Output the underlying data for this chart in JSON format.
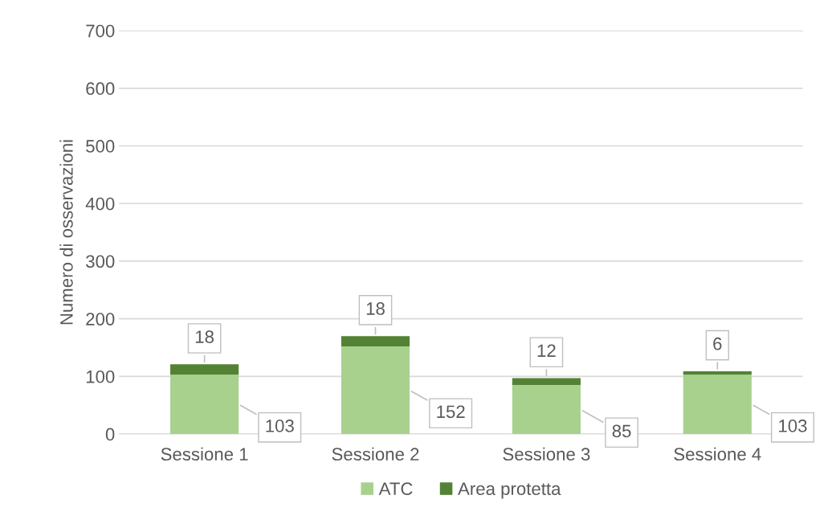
{
  "chart_data": {
    "type": "bar",
    "stacked": true,
    "ylabel": "Numero di osservazioni",
    "categories": [
      "Sessione 1",
      "Sessione 2",
      "Sessione 3",
      "Sessione 4"
    ],
    "series": [
      {
        "name": "ATC",
        "color": "#a9d18e",
        "values": [
          103,
          152,
          85,
          103
        ]
      },
      {
        "name": "Area protetta",
        "color": "#548235",
        "values": [
          18,
          18,
          12,
          6
        ]
      }
    ],
    "ylim": [
      0,
      700
    ],
    "yticks": [
      0,
      100,
      200,
      300,
      400,
      500,
      600,
      700
    ],
    "grid": "y",
    "legend": "bottom",
    "data_labels": true
  }
}
